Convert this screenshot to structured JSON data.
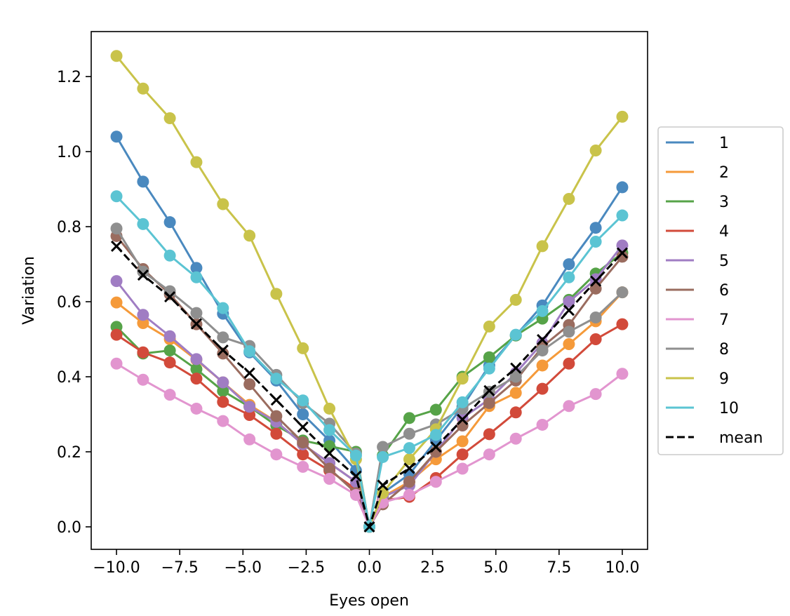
{
  "chart_data": {
    "type": "line",
    "title": "",
    "xlabel": "Eyes open",
    "ylabel": "Variation",
    "xlim": [
      -11.0,
      11.0
    ],
    "ylim": [
      -0.06,
      1.32
    ],
    "xticks": [
      -10.0,
      -7.5,
      -5.0,
      -2.5,
      0.0,
      2.5,
      5.0,
      7.5,
      10.0
    ],
    "xtick_labels": [
      "−10.0",
      "−7.5",
      "−5.0",
      "−2.5",
      "0.0",
      "2.5",
      "5.0",
      "7.5",
      "10.0"
    ],
    "yticks": [
      0.0,
      0.2,
      0.4,
      0.6,
      0.8,
      1.0,
      1.2
    ],
    "ytick_labels": [
      "0.0",
      "0.2",
      "0.4",
      "0.6",
      "0.8",
      "1.0",
      "1.2"
    ],
    "x": [
      -10.0,
      -8.95,
      -7.89,
      -6.84,
      -5.79,
      -4.74,
      -3.68,
      -2.63,
      -1.58,
      -0.53,
      0.0,
      0.53,
      1.58,
      2.63,
      3.68,
      4.74,
      5.79,
      6.84,
      7.89,
      8.95,
      10.0
    ],
    "legend_position": "center-right-outside",
    "series": [
      {
        "name": "1",
        "color": "#4a89bf",
        "marker": "circle",
        "values": [
          1.04,
          0.92,
          0.812,
          0.69,
          0.568,
          0.465,
          0.39,
          0.3,
          0.23,
          0.15,
          0.0,
          0.09,
          0.14,
          0.23,
          0.32,
          0.43,
          0.51,
          0.59,
          0.7,
          0.797,
          0.905
        ]
      },
      {
        "name": "2",
        "color": "#f59a3a",
        "marker": "circle",
        "values": [
          0.598,
          0.543,
          0.5,
          0.445,
          0.385,
          0.325,
          0.28,
          0.22,
          0.17,
          0.12,
          0.0,
          0.08,
          0.12,
          0.18,
          0.228,
          0.322,
          0.357,
          0.43,
          0.487,
          0.548,
          0.625
        ]
      },
      {
        "name": "3",
        "color": "#56a348",
        "marker": "circle",
        "values": [
          0.533,
          0.462,
          0.47,
          0.42,
          0.362,
          0.32,
          0.27,
          0.23,
          0.215,
          0.2,
          0.0,
          0.19,
          0.29,
          0.312,
          0.4,
          0.452,
          0.51,
          0.555,
          0.605,
          0.675,
          0.73
        ]
      },
      {
        "name": "4",
        "color": "#d24a3a",
        "marker": "circle",
        "values": [
          0.512,
          0.465,
          0.438,
          0.395,
          0.333,
          0.298,
          0.248,
          0.193,
          0.15,
          0.1,
          0.0,
          0.07,
          0.08,
          0.13,
          0.193,
          0.247,
          0.305,
          0.368,
          0.435,
          0.5,
          0.54
        ]
      },
      {
        "name": "5",
        "color": "#a07dc3",
        "marker": "circle",
        "values": [
          0.655,
          0.565,
          0.508,
          0.447,
          0.385,
          0.32,
          0.28,
          0.22,
          0.17,
          0.12,
          0.0,
          0.08,
          0.11,
          0.2,
          0.29,
          0.34,
          0.41,
          0.49,
          0.6,
          0.66,
          0.75
        ]
      },
      {
        "name": "6",
        "color": "#9a6c5f",
        "marker": "circle",
        "values": [
          0.775,
          0.687,
          0.62,
          0.54,
          0.462,
          0.38,
          0.295,
          0.225,
          0.155,
          0.09,
          0.0,
          0.06,
          0.12,
          0.2,
          0.27,
          0.33,
          0.39,
          0.48,
          0.538,
          0.635,
          0.72
        ]
      },
      {
        "name": "7",
        "color": "#e295cf",
        "marker": "circle",
        "values": [
          0.435,
          0.392,
          0.352,
          0.315,
          0.282,
          0.233,
          0.193,
          0.16,
          0.128,
          0.085,
          0.0,
          0.065,
          0.085,
          0.12,
          0.155,
          0.193,
          0.235,
          0.272,
          0.322,
          0.354,
          0.408
        ]
      },
      {
        "name": "8",
        "color": "#8f8f8f",
        "marker": "circle",
        "values": [
          0.795,
          0.68,
          0.628,
          0.57,
          0.505,
          0.482,
          0.405,
          0.33,
          0.275,
          0.195,
          0.0,
          0.213,
          0.248,
          0.273,
          0.315,
          0.36,
          0.4,
          0.47,
          0.52,
          0.558,
          0.625
        ]
      },
      {
        "name": "9",
        "color": "#c9c34a",
        "marker": "circle",
        "values": [
          1.255,
          1.168,
          1.089,
          0.972,
          0.86,
          0.776,
          0.621,
          0.476,
          0.315,
          0.18,
          0.0,
          0.09,
          0.18,
          0.26,
          0.395,
          0.534,
          0.605,
          0.748,
          0.874,
          1.003,
          1.093
        ]
      },
      {
        "name": "10",
        "color": "#5bc4d3",
        "marker": "circle",
        "values": [
          0.881,
          0.807,
          0.723,
          0.665,
          0.583,
          0.468,
          0.395,
          0.337,
          0.258,
          0.19,
          0.0,
          0.186,
          0.21,
          0.245,
          0.332,
          0.422,
          0.512,
          0.575,
          0.665,
          0.76,
          0.83
        ]
      },
      {
        "name": "mean",
        "color": "#000000",
        "marker": "x",
        "dashed": true,
        "values": [
          0.748,
          0.671,
          0.613,
          0.541,
          0.471,
          0.41,
          0.338,
          0.266,
          0.196,
          0.135,
          0.0,
          0.111,
          0.156,
          0.213,
          0.286,
          0.363,
          0.423,
          0.499,
          0.577,
          0.655,
          0.73
        ]
      }
    ]
  }
}
